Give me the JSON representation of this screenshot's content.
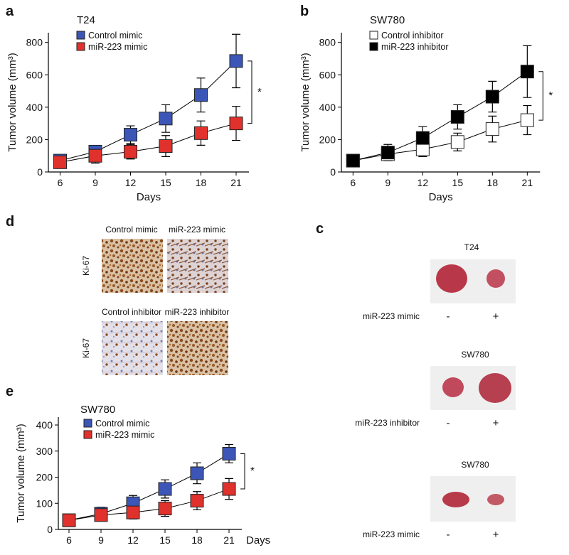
{
  "chart_data": [
    {
      "type": "line",
      "panel_label": "a",
      "title": "T24",
      "xlabel": "Days",
      "ylabel": "Tumor volume (mm³)",
      "x": [
        6,
        9,
        12,
        15,
        18,
        21
      ],
      "xlim": [
        5,
        23
      ],
      "xticks": [
        6,
        9,
        12,
        15,
        18,
        21
      ],
      "ylim": [
        0,
        860
      ],
      "yticks": [
        0,
        200,
        400,
        600,
        800
      ],
      "series": [
        {
          "name": "Control mimic",
          "color": "#3b56b6",
          "values": [
            70,
            125,
            230,
            330,
            475,
            685
          ],
          "errors": [
            20,
            30,
            55,
            85,
            105,
            165
          ]
        },
        {
          "name": "miR-223 mimic",
          "color": "#e0312c",
          "values": [
            60,
            100,
            125,
            160,
            240,
            300
          ],
          "errors": [
            15,
            45,
            45,
            65,
            75,
            105
          ]
        }
      ],
      "annotation": "*"
    },
    {
      "type": "line",
      "panel_label": "b",
      "title": "SW780",
      "xlabel": "Days",
      "ylabel": "Tumor volume (mm³)",
      "x": [
        6,
        9,
        12,
        15,
        18,
        21
      ],
      "xlim": [
        5,
        23
      ],
      "xticks": [
        6,
        9,
        12,
        15,
        18,
        21
      ],
      "ylim": [
        0,
        860
      ],
      "yticks": [
        0,
        200,
        400,
        600,
        800
      ],
      "series": [
        {
          "name": "Control inhibitor",
          "color": "#ffffff",
          "values": [
            70,
            110,
            140,
            185,
            265,
            320
          ],
          "errors": [
            20,
            40,
            45,
            55,
            80,
            90
          ]
        },
        {
          "name": "miR-223 inhibitor",
          "color": "#000000",
          "values": [
            70,
            120,
            210,
            340,
            465,
            620
          ],
          "errors": [
            20,
            50,
            70,
            75,
            95,
            160
          ]
        }
      ],
      "annotation": "*"
    },
    {
      "type": "line",
      "panel_label": "e",
      "title": "SW780",
      "xlabel": "Days",
      "ylabel": "Tumor volume (mm³)",
      "x": [
        6,
        9,
        12,
        15,
        18,
        21
      ],
      "xlim": [
        5,
        23
      ],
      "xticks": [
        6,
        9,
        12,
        15,
        18,
        21
      ],
      "ylim": [
        0,
        430
      ],
      "yticks": [
        0,
        100,
        200,
        300,
        400
      ],
      "series": [
        {
          "name": "Control mimic",
          "color": "#3b56b6",
          "values": [
            35,
            60,
            100,
            155,
            215,
            290
          ],
          "errors": [
            10,
            25,
            30,
            35,
            40,
            35
          ]
        },
        {
          "name": "miR-223 mimic",
          "color": "#e0312c",
          "values": [
            35,
            55,
            65,
            80,
            110,
            155
          ],
          "errors": [
            10,
            20,
            25,
            30,
            35,
            40
          ]
        }
      ],
      "annotation": "*"
    }
  ],
  "panel_d": {
    "panel_label": "d",
    "rows": [
      {
        "row_label": "Ki-67",
        "columns": [
          "Control mimic",
          "miR-223 mimic"
        ]
      },
      {
        "row_label": "Ki-67",
        "columns": [
          "Control inhibitor",
          "miR-223 inhibitor"
        ]
      }
    ]
  },
  "panel_c": {
    "panel_label": "c",
    "groups": [
      {
        "title": "T24",
        "treatment": "miR-223 mimic",
        "signs": [
          "-",
          "+"
        ]
      },
      {
        "title": "SW780",
        "treatment": "miR-223 inhibitor",
        "signs": [
          "-",
          "+"
        ]
      },
      {
        "title": "SW780",
        "treatment": "miR-223 mimic",
        "signs": [
          "-",
          "+"
        ]
      }
    ]
  }
}
